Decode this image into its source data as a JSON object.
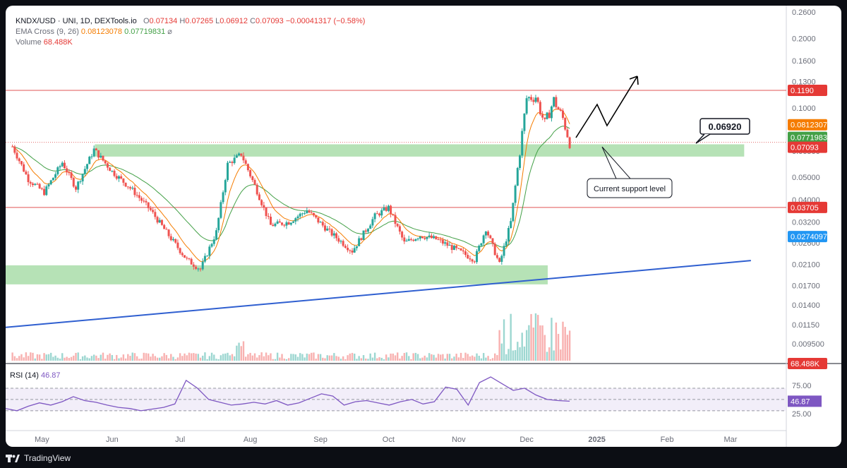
{
  "legend": {
    "pair": "KNDX/USD · UNI, 1D, DEXTools.io",
    "o_label": "O",
    "o": "0.07134",
    "h_label": "H",
    "h": "0.07265",
    "l_label": "L",
    "l": "0.06912",
    "c_label": "C",
    "c": "0.07093",
    "change": "−0.00041317 (−0.58%)",
    "ema_label": "EMA Cross (9, 26)",
    "ema_fast": "0.08123078",
    "ema_slow": "0.07719831",
    "ema_icon": "⌀",
    "vol_label": "Volume",
    "vol": "68.488K"
  },
  "annotations": {
    "callout_price": "0.06920",
    "support_label": "Current support level"
  },
  "rsi": {
    "label": "RSI (14)",
    "value": "46.87"
  },
  "footer": {
    "brand": "TradingView"
  },
  "colors": {
    "up": "#26a69a",
    "down": "#ef5350",
    "ema_fast": "#f57c00",
    "ema_slow": "#43a047",
    "zone": "#9ed89e",
    "trendline": "#2f5fd0",
    "resistance": "#e05555",
    "rsi_line": "#7e57c2"
  },
  "chart_data": {
    "type": "candlestick",
    "title": "KNDX/USD · UNI, 1D, DEXTools.io",
    "y_scale": "log",
    "y_ticks": [
      "0.2600",
      "0.2000",
      "0.1600",
      "0.1300",
      "0.1000",
      "0.06500",
      "0.05000",
      "0.04000",
      "0.03200",
      "0.02600",
      "0.02100",
      "0.01700",
      "0.01400",
      "0.01150",
      "0.009500"
    ],
    "x_ticks": [
      "May",
      "Jun",
      "Jul",
      "Aug",
      "Sep",
      "Oct",
      "Nov",
      "Dec",
      "2025",
      "Feb",
      "Mar"
    ],
    "price_badges": [
      {
        "value": "0.1190",
        "color": "#e53935"
      },
      {
        "value": "0.08123078",
        "color": "#f57c00"
      },
      {
        "value": "0.07719831",
        "color": "#43a047"
      },
      {
        "value": "0.07093",
        "color": "#e53935"
      },
      {
        "value": "0.03705",
        "color": "#e53935"
      },
      {
        "value": "0.02740970",
        "color": "#2196f3"
      },
      {
        "value": "68.488K",
        "color": "#e53935"
      }
    ],
    "horizontal_levels": [
      0.119,
      0.03705
    ],
    "zones": [
      {
        "from": "2024-05-01",
        "to": "2025-02-28",
        "low": 0.0615,
        "high": 0.0695
      },
      {
        "from": "2024-04-15",
        "to": "2024-12-01",
        "low": 0.0172,
        "high": 0.0208
      }
    ],
    "trendline": {
      "from": {
        "date": "2024-04-15",
        "price": 0.0112
      },
      "to": {
        "date": "2025-03-10",
        "price": 0.0218
      }
    },
    "close_series": [
      {
        "date": "2024-04-18",
        "close": 0.068
      },
      {
        "date": "2024-04-25",
        "close": 0.049
      },
      {
        "date": "2024-05-02",
        "close": 0.043
      },
      {
        "date": "2024-05-10",
        "close": 0.058
      },
      {
        "date": "2024-05-16",
        "close": 0.045
      },
      {
        "date": "2024-05-24",
        "close": 0.066
      },
      {
        "date": "2024-06-01",
        "close": 0.053
      },
      {
        "date": "2024-06-10",
        "close": 0.044
      },
      {
        "date": "2024-06-18",
        "close": 0.036
      },
      {
        "date": "2024-06-26",
        "close": 0.028
      },
      {
        "date": "2024-07-04",
        "close": 0.022
      },
      {
        "date": "2024-07-10",
        "close": 0.02
      },
      {
        "date": "2024-07-17",
        "close": 0.029
      },
      {
        "date": "2024-07-22",
        "close": 0.057
      },
      {
        "date": "2024-07-28",
        "close": 0.063
      },
      {
        "date": "2024-08-03",
        "close": 0.046
      },
      {
        "date": "2024-08-10",
        "close": 0.031
      },
      {
        "date": "2024-08-18",
        "close": 0.032
      },
      {
        "date": "2024-08-26",
        "close": 0.036
      },
      {
        "date": "2024-09-05",
        "close": 0.029
      },
      {
        "date": "2024-09-15",
        "close": 0.024
      },
      {
        "date": "2024-09-25",
        "close": 0.034
      },
      {
        "date": "2024-10-01",
        "close": 0.037
      },
      {
        "date": "2024-10-08",
        "close": 0.026
      },
      {
        "date": "2024-10-15",
        "close": 0.028
      },
      {
        "date": "2024-10-22",
        "close": 0.027
      },
      {
        "date": "2024-11-01",
        "close": 0.024
      },
      {
        "date": "2024-11-08",
        "close": 0.022
      },
      {
        "date": "2024-11-13",
        "close": 0.03
      },
      {
        "date": "2024-11-19",
        "close": 0.021
      },
      {
        "date": "2024-11-24",
        "close": 0.032
      },
      {
        "date": "2024-11-28",
        "close": 0.065
      },
      {
        "date": "2024-12-01",
        "close": 0.11
      },
      {
        "date": "2024-12-05",
        "close": 0.112
      },
      {
        "date": "2024-12-09",
        "close": 0.085
      },
      {
        "date": "2024-12-13",
        "close": 0.108
      },
      {
        "date": "2024-12-17",
        "close": 0.09
      },
      {
        "date": "2024-12-20",
        "close": 0.07093
      }
    ],
    "volume_unit": "K",
    "rsi": {
      "period": 14,
      "last": 46.87,
      "upper": 70,
      "lower": 30,
      "ticks": [
        "75.00",
        "50.00",
        "25.00"
      ],
      "series": [
        34,
        30,
        38,
        44,
        40,
        46,
        55,
        48,
        45,
        40,
        36,
        34,
        30,
        33,
        36,
        42,
        84,
        70,
        50,
        45,
        40,
        42,
        45,
        42,
        48,
        40,
        44,
        52,
        60,
        56,
        40,
        46,
        48,
        44,
        40,
        46,
        50,
        42,
        46,
        72,
        68,
        40,
        80,
        90,
        78,
        66,
        70,
        58,
        50,
        48,
        46.87
      ]
    }
  }
}
